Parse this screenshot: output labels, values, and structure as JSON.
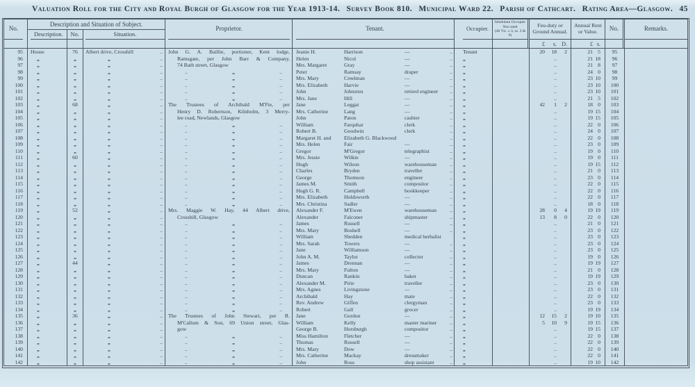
{
  "title": {
    "segments": [
      "Valuation Roll for the City and Royal Burgh of Glasgow for the Year 1913-14.",
      "Survey Book 810.",
      "Municipal Ward 22.",
      "Parish of Cathcart.",
      "Rating Area—Glasgow.",
      "45"
    ]
  },
  "header": {
    "no": "No.",
    "group_desc": "Description and Situation of Subject.",
    "description": "Description.",
    "house_no": "No.",
    "situation": "Situation.",
    "proprietor": "Proprietor.",
    "tenant": "Tenant.",
    "occupier": "Occupier.",
    "inhabitant_line1": "Inhabitant Occupier",
    "inhabitant_line2": "Not rated",
    "inhabitant_line3": "(48 Vic. c.3, ss. 3 & 9)",
    "feu": "Feu-duty or Ground Annual.",
    "annual": "Annual Rent or Value.",
    "no2": "No.",
    "remarks": "Remarks.",
    "money_feu": [
      "£",
      "s.",
      "D."
    ],
    "money_rent": [
      "£",
      "s."
    ]
  },
  "defaults": {
    "ditto": "„",
    "dots": "..",
    "prop_ditto": [
      "..",
      "„",
      ".."
    ]
  },
  "rows": [
    {
      "n": 95,
      "d": "House",
      "hn": "76",
      "s": "Albert drive, Crosshill",
      "p": "John G. A. Baillie, portioner, Kent lodge,",
      "pj": 1,
      "tf": "Jeanie H.",
      "ts": "Harrison",
      "to": "—",
      "oc": "Tenant",
      "f": "20|18|2",
      "r": "21|5"
    },
    {
      "n": 96,
      "d": "„",
      "hn": "„",
      "s": "„",
      "p": "Ramsgate, per John Barr & Company,",
      "pi": 1,
      "pj": 1,
      "tf": "Helen",
      "ts": "Nicol",
      "to": "—",
      "oc": "„",
      "r": "21|18"
    },
    {
      "n": 97,
      "d": "„",
      "hn": "„",
      "s": "„",
      "p": "74 Bath street, Glasgow",
      "pi": 1,
      "tf": "Mrs. Margaret",
      "ts": "Gray",
      "to": "—",
      "oc": "„",
      "r": "21|8"
    },
    {
      "n": 98,
      "d": "„",
      "hn": "„",
      "s": "„",
      "pd": 1,
      "tf": "Peter",
      "ts": "Ramsay",
      "to": "draper",
      "oc": "„",
      "r": "24|0"
    },
    {
      "n": 99,
      "d": "„",
      "hn": "„",
      "s": "„",
      "pd": 1,
      "tf": "Mrs. Mary",
      "ts": "Creelman",
      "to": "—",
      "oc": "„",
      "r": "23|10"
    },
    {
      "n": 100,
      "d": "„",
      "hn": "„",
      "s": "„",
      "pd": 1,
      "tf": "Mrs. Elizabeth",
      "ts": "Harvie",
      "to": "—",
      "oc": "„",
      "r": "23|10"
    },
    {
      "n": 101,
      "d": "„",
      "hn": "„",
      "s": "„",
      "pd": 1,
      "tf": "John",
      "ts": "Johnston",
      "to": "retired engineer",
      "oc": "„",
      "r": "23|10"
    },
    {
      "n": 102,
      "d": "„",
      "hn": "„",
      "s": "„",
      "pd": 1,
      "tf": "Mrs. Jane",
      "ts": "Hill",
      "to": "—",
      "oc": "„",
      "r": "21|5"
    },
    {
      "n": 103,
      "d": "„",
      "hn": "68",
      "s": "„",
      "p": "The Trustees of Archibald M'Fie, per",
      "pj": 1,
      "tf": "Jane",
      "ts": "Leggat",
      "to": "—",
      "oc": "„",
      "f": "42|1|2",
      "r": "18|0"
    },
    {
      "n": 104,
      "d": "„",
      "hn": "„",
      "s": "„",
      "p": "Henry D. Robertson, Kilnholm, 3 Merry-",
      "pi": 1,
      "pj": 1,
      "tf": "Mrs. Catherine",
      "ts": "Lang",
      "to": "—",
      "oc": "„",
      "r": "19|15"
    },
    {
      "n": 105,
      "d": "„",
      "hn": "„",
      "s": "„",
      "p": "lee road, Newlands, Glasgow",
      "pi": 1,
      "tf": "John",
      "ts": "Paton",
      "to": "cashier",
      "oc": "„",
      "r": "19|15"
    },
    {
      "n": 106,
      "d": "„",
      "hn": "„",
      "s": "„",
      "pd": 1,
      "tf": "William",
      "ts": "Farquhar",
      "to": "clerk",
      "oc": "„",
      "r": "22|0"
    },
    {
      "n": 107,
      "d": "„",
      "hn": "„",
      "s": "„",
      "pd": 1,
      "tf": "Robert B.",
      "ts": "Goodwin",
      "to": "clerk",
      "oc": "„",
      "r": "24|0"
    },
    {
      "n": 108,
      "d": "„",
      "hn": "„",
      "s": "„",
      "pd": 1,
      "tf": "Margaret H. and",
      "ts": "Elizabeth G. Blackwood",
      "to": "",
      "oc": "„",
      "r": "22|0"
    },
    {
      "n": 109,
      "d": "„",
      "hn": "„",
      "s": "„",
      "pd": 1,
      "tf": "Mrs. Helen",
      "ts": "Fair",
      "to": "—",
      "oc": "„",
      "r": "23|0"
    },
    {
      "n": 110,
      "d": "„",
      "hn": "„",
      "s": "„",
      "pd": 1,
      "tf": "Gregor",
      "ts": "M'Gregor",
      "to": "telegraphist",
      "oc": "„",
      "r": "19|0"
    },
    {
      "n": 111,
      "d": "„",
      "hn": "60",
      "s": "„",
      "pd": 1,
      "tf": "Mrs. Jessie",
      "ts": "Wilkie",
      "to": "—",
      "oc": "„",
      "r": "19|0"
    },
    {
      "n": 112,
      "d": "„",
      "hn": "„",
      "s": "„",
      "pd": 1,
      "tf": "Hugh",
      "ts": "Wilson",
      "to": "warehouseman",
      "oc": "„",
      "r": "19|15"
    },
    {
      "n": 113,
      "d": "„",
      "hn": "„",
      "s": "„",
      "pd": 1,
      "tf": "Charles",
      "ts": "Bryden",
      "to": "traveller",
      "oc": "„",
      "r": "21|0"
    },
    {
      "n": 114,
      "d": "„",
      "hn": "„",
      "s": "„",
      "pd": 1,
      "tf": "George",
      "ts": "Thomson",
      "to": "engineer",
      "oc": "„",
      "r": "23|0"
    },
    {
      "n": 115,
      "d": "„",
      "hn": "„",
      "s": "„",
      "pd": 1,
      "tf": "James M.",
      "ts": "Smith",
      "to": "compositor",
      "oc": "„",
      "r": "22|0"
    },
    {
      "n": 116,
      "d": "„",
      "hn": "„",
      "s": "„",
      "pd": 1,
      "tf": "Hugh G. R.",
      "ts": "Campbell",
      "to": "bookkeeper",
      "oc": "„",
      "r": "22|0"
    },
    {
      "n": 117,
      "d": "„",
      "hn": "„",
      "s": "„",
      "pd": 1,
      "tf": "Mrs. Elizabeth",
      "ts": "Holdsworth",
      "to": "—",
      "oc": "„",
      "r": "22|0"
    },
    {
      "n": 118,
      "d": "„",
      "hn": "„",
      "s": "„",
      "pd": 1,
      "tf": "Mrs. Christina",
      "ts": "Sadler",
      "to": "—",
      "oc": "„",
      "r": "18|0"
    },
    {
      "n": 119,
      "d": "„",
      "hn": "52",
      "s": "„",
      "p": "Mrs. Maggie W. Hay, 44 Albert drive,",
      "pj": 1,
      "tf": "Alexander F.",
      "ts": "M'Ewen",
      "to": "warehouseman",
      "oc": "„",
      "f": "28|0|4",
      "r": "19|19"
    },
    {
      "n": 120,
      "d": "„",
      "hn": "„",
      "s": "„",
      "p": "Crosshill, Glasgow",
      "pi": 1,
      "tf": "Alexander",
      "ts": "Falconer",
      "to": "shipmaster",
      "oc": "„",
      "f": "13|8|0",
      "r": "22|0"
    },
    {
      "n": 121,
      "d": "„",
      "hn": "„",
      "s": "„",
      "pd": 1,
      "tf": "James",
      "ts": "Russell",
      "to": "—",
      "oc": "„",
      "r": "21|0"
    },
    {
      "n": 122,
      "d": "„",
      "hn": "„",
      "s": "„",
      "pd": 1,
      "tf": "Mrs. Mary",
      "ts": "Boshell",
      "to": "—",
      "oc": "„",
      "r": "23|0"
    },
    {
      "n": 123,
      "d": "„",
      "hn": "„",
      "s": "„",
      "pd": 1,
      "tf": "William",
      "ts": "Shedden",
      "to": "medical herbalist",
      "td": "",
      "oc": "„",
      "r": "23|0"
    },
    {
      "n": 124,
      "d": "„",
      "hn": "„",
      "s": "„",
      "pd": 1,
      "tf": "Mrs. Sarah",
      "ts": "Towers",
      "to": "—",
      "oc": "„",
      "r": "23|0"
    },
    {
      "n": 125,
      "d": "„",
      "hn": "„",
      "s": "„",
      "pd": 1,
      "tf": "Jane",
      "ts": "Williamson",
      "to": "—",
      "oc": "„",
      "r": "23|0"
    },
    {
      "n": 126,
      "d": "„",
      "hn": "„",
      "s": "„",
      "pd": 1,
      "tf": "John A. M.",
      "ts": "Taylor",
      "to": "collector",
      "oc": "„",
      "r": "19|0"
    },
    {
      "n": 127,
      "d": "„",
      "hn": "44",
      "s": "„",
      "pd": 1,
      "tf": "James",
      "ts": "Drennan",
      "to": "—",
      "oc": "„",
      "r": "19|19"
    },
    {
      "n": 128,
      "d": "„",
      "hn": "„",
      "s": "„",
      "pd": 1,
      "tf": "Mrs. Mary",
      "ts": "Fulton",
      "to": "—",
      "oc": "„",
      "r": "21|0"
    },
    {
      "n": 129,
      "d": "„",
      "hn": "„",
      "s": "„",
      "pd": 1,
      "tf": "Duncan",
      "ts": "Rankin",
      "to": "baker",
      "oc": "„",
      "r": "19|19"
    },
    {
      "n": 130,
      "d": "„",
      "hn": "„",
      "s": "„",
      "pd": 1,
      "tf": "Alexander M.",
      "ts": "Pirie",
      "to": "traveller",
      "oc": "„",
      "r": "23|0"
    },
    {
      "n": 131,
      "d": "„",
      "hn": "„",
      "s": "„",
      "pd": 1,
      "tf": "Mrs. Agnes",
      "ts": "Livingstone",
      "to": "—",
      "oc": "„",
      "r": "23|0"
    },
    {
      "n": 132,
      "d": "„",
      "hn": "„",
      "s": "„",
      "pd": 1,
      "tf": "Archibald",
      "ts": "Hay",
      "to": "mate",
      "oc": "„",
      "r": "22|0"
    },
    {
      "n": 133,
      "d": "„",
      "hn": "„",
      "s": "„",
      "pd": 1,
      "tf": "Rev. Andrew",
      "ts": "Giffen",
      "to": "clergyman",
      "oc": "„",
      "r": "23|0"
    },
    {
      "n": 134,
      "d": "„",
      "hn": "„",
      "s": "„",
      "pd": 1,
      "tf": "Robert",
      "ts": "Gall",
      "to": "grocer",
      "oc": "„",
      "r": "19|19"
    },
    {
      "n": 135,
      "d": "„",
      "hn": "36",
      "s": "„",
      "p": "The Trustees of John Stewart, per R.",
      "pj": 1,
      "tf": "Jane",
      "ts": "Gordon",
      "to": "—",
      "oc": "„",
      "f": "12|15|2",
      "r": "19|10"
    },
    {
      "n": 136,
      "d": "„",
      "hn": "„",
      "s": "„",
      "p": "M'Callum & Son, 69 Union street, Glas-",
      "pi": 1,
      "pj": 1,
      "tf": "William",
      "ts": "Kelly",
      "to": "master mariner",
      "oc": "„",
      "f": "5|10|9",
      "r": "19|15"
    },
    {
      "n": 137,
      "d": "„",
      "hn": "„",
      "s": "„",
      "p": "gow",
      "pi": 1,
      "tf": "George B.",
      "ts": "Horsburgh",
      "to": "compositor",
      "oc": "„",
      "r": "19|15"
    },
    {
      "n": 138,
      "d": "„",
      "hn": "„",
      "s": "„",
      "pd": 1,
      "tf": "Miss Hamilton",
      "ts": "Fletcher",
      "to": "—",
      "oc": "„",
      "r": "22|0"
    },
    {
      "n": 139,
      "d": "„",
      "hn": "„",
      "s": "„",
      "pd": 1,
      "tf": "Thomas",
      "ts": "Russell",
      "to": "—",
      "oc": "„",
      "r": "22|0"
    },
    {
      "n": 140,
      "d": "„",
      "hn": "„",
      "s": "„",
      "pd": 1,
      "tf": "Mrs. Mary",
      "ts": "Dow",
      "to": "—",
      "oc": "„",
      "r": "22|0"
    },
    {
      "n": 141,
      "d": "„",
      "hn": "„",
      "s": "„",
      "pd": 1,
      "tf": "Mrs. Catherine",
      "ts": "Mackay",
      "to": "dressmaker",
      "oc": "„",
      "r": "22|0"
    },
    {
      "n": 142,
      "d": "„",
      "hn": "„",
      "s": "„",
      "pd": 1,
      "tf": "John",
      "ts": "Ross",
      "to": "shop assistant",
      "oc": "„",
      "r": "19|10"
    }
  ]
}
